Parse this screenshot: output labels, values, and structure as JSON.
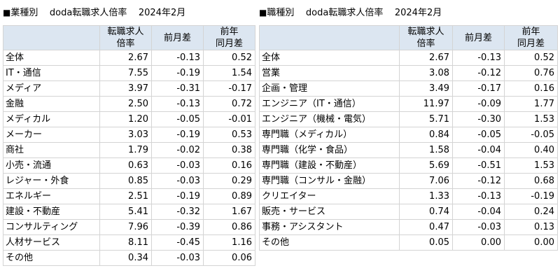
{
  "left": {
    "title_mark": "■",
    "title_prefix": "業種別",
    "title_main": "doda転職求人倍率",
    "title_date": "2024年2月",
    "headers": {
      "ratio_line1": "転職求人",
      "ratio_line2": "倍率",
      "mom": "前月差",
      "yoy_line1": "前年",
      "yoy_line2": "同月差"
    },
    "rows": [
      {
        "name": "全体",
        "ratio": "2.67",
        "mom": "-0.13",
        "yoy": "0.52"
      },
      {
        "name": "IT・通信",
        "ratio": "7.55",
        "mom": "-0.19",
        "yoy": "1.54"
      },
      {
        "name": "メディア",
        "ratio": "3.97",
        "mom": "-0.31",
        "yoy": "-0.17"
      },
      {
        "name": "金融",
        "ratio": "2.50",
        "mom": "-0.13",
        "yoy": "0.72"
      },
      {
        "name": "メディカル",
        "ratio": "1.20",
        "mom": "-0.05",
        "yoy": "-0.01"
      },
      {
        "name": "メーカー",
        "ratio": "3.03",
        "mom": "-0.19",
        "yoy": "0.53"
      },
      {
        "name": "商社",
        "ratio": "1.79",
        "mom": "-0.02",
        "yoy": "0.38"
      },
      {
        "name": "小売・流通",
        "ratio": "0.63",
        "mom": "-0.03",
        "yoy": "0.16"
      },
      {
        "name": "レジャー・外食",
        "ratio": "0.85",
        "mom": "-0.03",
        "yoy": "0.29"
      },
      {
        "name": "エネルギー",
        "ratio": "2.51",
        "mom": "-0.19",
        "yoy": "0.89"
      },
      {
        "name": "建設・不動産",
        "ratio": "5.41",
        "mom": "-0.32",
        "yoy": "1.67"
      },
      {
        "name": "コンサルティング",
        "ratio": "7.96",
        "mom": "-0.39",
        "yoy": "0.86"
      },
      {
        "name": "人材サービス",
        "ratio": "8.11",
        "mom": "-0.45",
        "yoy": "1.16"
      },
      {
        "name": "その他",
        "ratio": "0.34",
        "mom": "-0.03",
        "yoy": "0.06"
      }
    ]
  },
  "right": {
    "title_mark": "■",
    "title_prefix": "職種別",
    "title_main": "doda転職求人倍率",
    "title_date": "2024年2月",
    "headers": {
      "ratio_line1": "転職求人",
      "ratio_line2": "倍率",
      "mom": "前月差",
      "yoy_line1": "前年",
      "yoy_line2": "同月差"
    },
    "rows": [
      {
        "name": "全体",
        "ratio": "2.67",
        "mom": "-0.13",
        "yoy": "0.52"
      },
      {
        "name": "営業",
        "ratio": "3.08",
        "mom": "-0.12",
        "yoy": "0.76"
      },
      {
        "name": "企画・管理",
        "ratio": "3.49",
        "mom": "-0.17",
        "yoy": "0.16"
      },
      {
        "name": "エンジニア（IT・通信）",
        "ratio": "11.97",
        "mom": "-0.09",
        "yoy": "1.77"
      },
      {
        "name": "エンジニア（機械・電気）",
        "ratio": "5.71",
        "mom": "-0.30",
        "yoy": "1.53"
      },
      {
        "name": "専門職（メディカル）",
        "ratio": "0.84",
        "mom": "-0.05",
        "yoy": "-0.05"
      },
      {
        "name": "専門職（化学・食品）",
        "ratio": "1.58",
        "mom": "-0.04",
        "yoy": "0.40"
      },
      {
        "name": "専門職（建設・不動産）",
        "ratio": "5.69",
        "mom": "-0.51",
        "yoy": "1.53"
      },
      {
        "name": "専門職（コンサル・金融）",
        "ratio": "7.06",
        "mom": "-0.12",
        "yoy": "0.68"
      },
      {
        "name": "クリエイター",
        "ratio": "1.33",
        "mom": "-0.13",
        "yoy": "-0.19"
      },
      {
        "name": "販売・サービス",
        "ratio": "0.74",
        "mom": "-0.04",
        "yoy": "0.24"
      },
      {
        "name": "事務・アシスタント",
        "ratio": "0.47",
        "mom": "-0.03",
        "yoy": "0.13"
      },
      {
        "name": "その他",
        "ratio": "0.05",
        "mom": "0.00",
        "yoy": "0.00"
      }
    ]
  }
}
